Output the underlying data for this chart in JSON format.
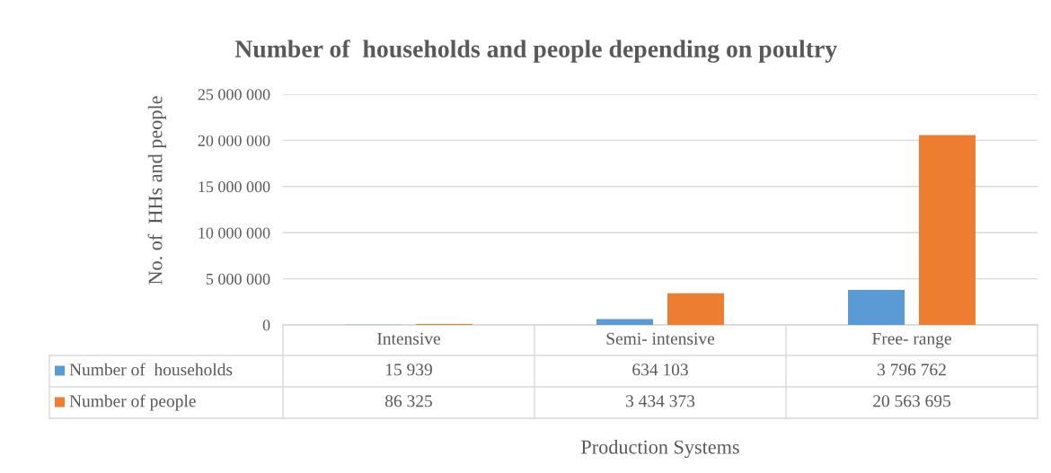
{
  "chart_data": {
    "type": "bar",
    "title": "Number of  households and people depending on poultry",
    "xlabel": "Production Systems",
    "ylabel": "No. of  HHs and people",
    "categories": [
      "Intensive",
      "Semi- intensive",
      "Free- range"
    ],
    "series": [
      {
        "name": "Number of  households",
        "color": "#5b9bd5",
        "values": [
          15939,
          634103,
          3796762
        ],
        "value_labels": [
          "15 939",
          "634 103",
          "3 796 762"
        ]
      },
      {
        "name": "Number of people",
        "color": "#ed7d31",
        "values": [
          86325,
          3434373,
          20563695
        ],
        "value_labels": [
          "86 325",
          "3 434 373",
          "20 563 695"
        ]
      }
    ],
    "ylim": [
      0,
      25000000
    ],
    "yticks": [
      {
        "value": 0,
        "label": "0"
      },
      {
        "value": 5000000,
        "label": "5 000 000"
      },
      {
        "value": 10000000,
        "label": "10 000 000"
      },
      {
        "value": 15000000,
        "label": "15 000 000"
      },
      {
        "value": 20000000,
        "label": "20 000 000"
      },
      {
        "value": 25000000,
        "label": "25 000 000"
      }
    ],
    "grid": "y",
    "legend": "bottom left"
  }
}
